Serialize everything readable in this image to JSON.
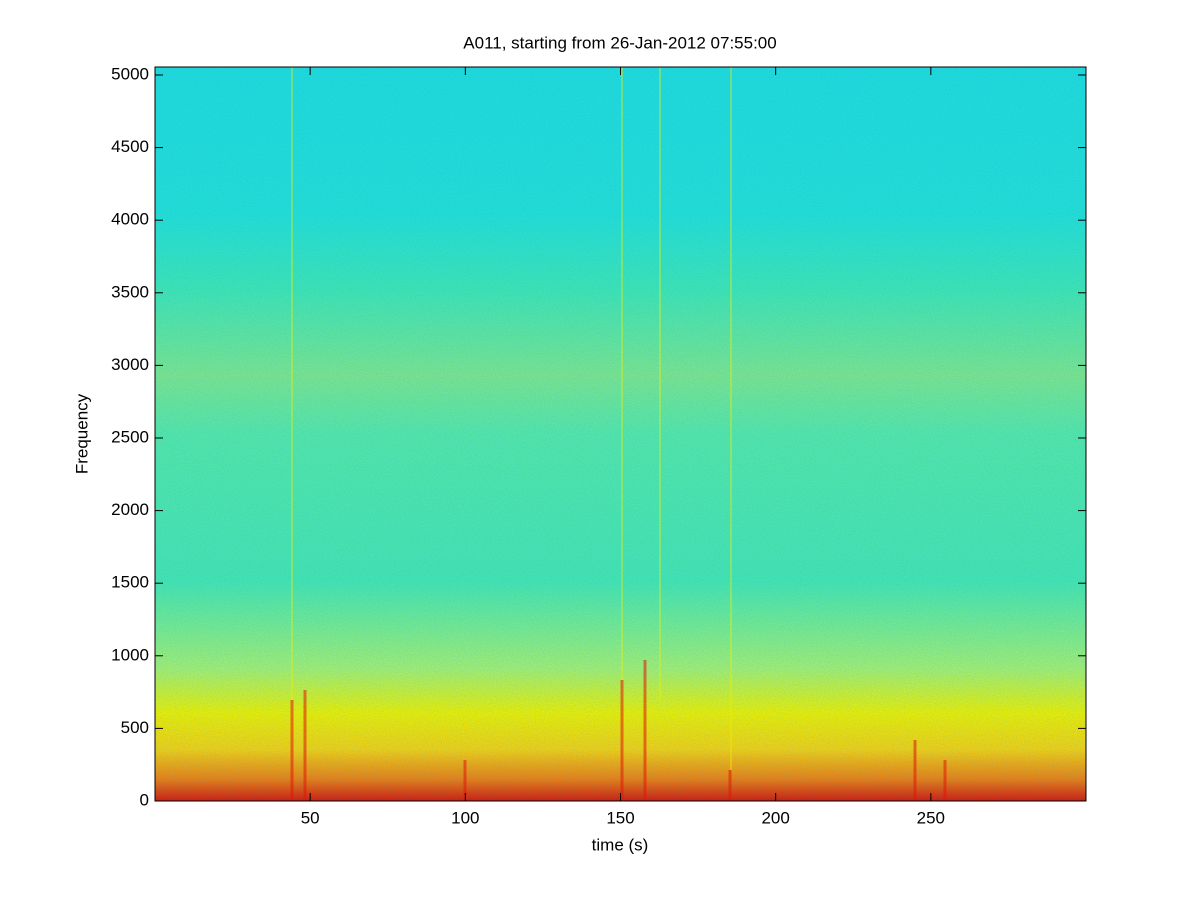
{
  "chart_data": {
    "type": "spectrogram",
    "title": "A011, starting from 26-Jan-2012 07:55:00",
    "xlabel": "time (s)",
    "ylabel": "Frequency",
    "xlim": [
      0,
      300
    ],
    "ylim": [
      0,
      5055
    ],
    "xticks": [
      50,
      100,
      150,
      200,
      250
    ],
    "yticks": [
      0,
      500,
      1000,
      1500,
      2000,
      2500,
      3000,
      3500,
      4000,
      4500,
      5000
    ],
    "grid": false
  }
}
